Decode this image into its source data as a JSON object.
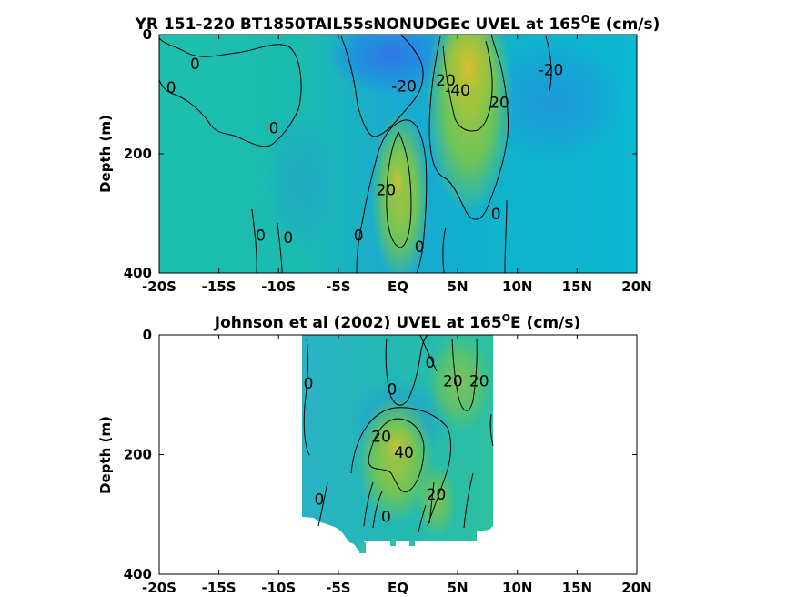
{
  "chart_data": [
    {
      "type": "heatmap",
      "title_main": "YR 151-220 BT1850TAIL55sNONUDGEc UVEL at 165",
      "title_deg": "O",
      "title_tail": "E (cm/s)",
      "ylabel": "Depth (m)",
      "xlim": [
        -20,
        20
      ],
      "ylim": [
        0,
        400
      ],
      "x_ticks": [
        -20,
        -15,
        -10,
        -5,
        0,
        5,
        10,
        15,
        20
      ],
      "x_tick_labels": [
        "-20S",
        "-15S",
        "-10S",
        "-5S",
        "EQ",
        "5N",
        "10N",
        "15N",
        "20N"
      ],
      "y_ticks": [
        0,
        200,
        400
      ],
      "y_tick_labels": [
        "0",
        "200",
        "400"
      ],
      "contour_labels": [
        {
          "text": "0",
          "x": -17,
          "y": 50
        },
        {
          "text": "0",
          "x": -19,
          "y": 90
        },
        {
          "text": "0",
          "x": -10.4,
          "y": 158
        },
        {
          "text": "-20",
          "x": 0.5,
          "y": 88
        },
        {
          "text": "20",
          "x": 4,
          "y": 78
        },
        {
          "text": "-40",
          "x": 5,
          "y": 95
        },
        {
          "text": "20",
          "x": 8.5,
          "y": 115
        },
        {
          "text": "-20",
          "x": 12.8,
          "y": 60
        },
        {
          "text": "20",
          "x": -1,
          "y": 262
        },
        {
          "text": "0",
          "x": 8.2,
          "y": 302
        },
        {
          "text": "0",
          "x": -11.5,
          "y": 338
        },
        {
          "text": "0",
          "x": -9.2,
          "y": 342
        },
        {
          "text": "0",
          "x": -3.3,
          "y": 338
        },
        {
          "text": "0",
          "x": 1.8,
          "y": 357
        }
      ]
    },
    {
      "type": "heatmap",
      "title_main": "Johnson et al (2002) UVEL at 165",
      "title_deg": "O",
      "title_tail": "E (cm/s)",
      "ylabel": "Depth (m)",
      "xlim": [
        -20,
        20
      ],
      "ylim": [
        0,
        400
      ],
      "x_ticks": [
        -20,
        -15,
        -10,
        -5,
        0,
        5,
        10,
        15,
        20
      ],
      "x_tick_labels": [
        "-20S",
        "-15S",
        "-10S",
        "-5S",
        "EQ",
        "5N",
        "10N",
        "15N",
        "20N"
      ],
      "y_ticks": [
        0,
        200,
        400
      ],
      "y_tick_labels": [
        "0",
        "200",
        "400"
      ],
      "contour_labels": [
        {
          "text": "0",
          "x": -7.5,
          "y": 82
        },
        {
          "text": "0",
          "x": -0.5,
          "y": 92
        },
        {
          "text": "0",
          "x": 2.7,
          "y": 47
        },
        {
          "text": "20",
          "x": 4.6,
          "y": 78
        },
        {
          "text": "20",
          "x": 6.8,
          "y": 78
        },
        {
          "text": "20",
          "x": -1.4,
          "y": 171
        },
        {
          "text": "40",
          "x": 0.5,
          "y": 198
        },
        {
          "text": "20",
          "x": 3.2,
          "y": 268
        },
        {
          "text": "0",
          "x": -6.6,
          "y": 276
        },
        {
          "text": "0",
          "x": -1,
          "y": 305
        }
      ]
    }
  ]
}
